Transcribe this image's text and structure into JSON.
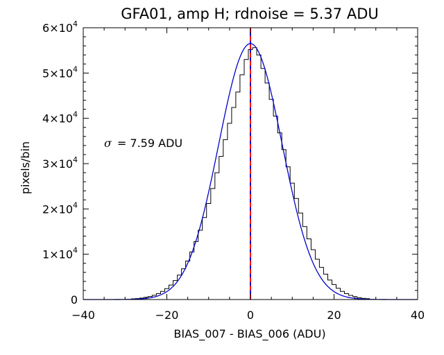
{
  "chart_data": {
    "type": "histogram",
    "title": "GFA01, amp H; rdnoise = 5.37 ADU",
    "xlabel": "BIAS_007 - BIAS_006 (ADU)",
    "ylabel": "pixels/bin",
    "xlim": [
      -40,
      40
    ],
    "ylim": [
      0,
      60000
    ],
    "x_ticks": [
      -40,
      -20,
      0,
      20,
      40
    ],
    "y_ticks": [
      {
        "value": 0,
        "mantissa": "0",
        "exponent": ""
      },
      {
        "value": 10000,
        "mantissa": "1×10",
        "exponent": "4"
      },
      {
        "value": 20000,
        "mantissa": "2×10",
        "exponent": "4"
      },
      {
        "value": 30000,
        "mantissa": "3×10",
        "exponent": "4"
      },
      {
        "value": 40000,
        "mantissa": "4×10",
        "exponent": "4"
      },
      {
        "value": 50000,
        "mantissa": "5×10",
        "exponent": "4"
      },
      {
        "value": 60000,
        "mantissa": "6×10",
        "exponent": "4"
      }
    ],
    "grid": false,
    "annotation": {
      "symbol": "σ",
      "text": "= 7.59 ADU"
    },
    "histogram": {
      "bin_width": 1,
      "bins": [
        {
          "x": -28,
          "y": 150
        },
        {
          "x": -27,
          "y": 220
        },
        {
          "x": -26,
          "y": 320
        },
        {
          "x": -25,
          "y": 480
        },
        {
          "x": -24,
          "y": 680
        },
        {
          "x": -23,
          "y": 940
        },
        {
          "x": -22,
          "y": 1300
        },
        {
          "x": -21,
          "y": 1800
        },
        {
          "x": -20,
          "y": 2400
        },
        {
          "x": -19,
          "y": 3200
        },
        {
          "x": -18,
          "y": 4200
        },
        {
          "x": -17,
          "y": 5400
        },
        {
          "x": -16,
          "y": 6800
        },
        {
          "x": -15,
          "y": 8500
        },
        {
          "x": -14,
          "y": 10500
        },
        {
          "x": -13,
          "y": 12800
        },
        {
          "x": -12,
          "y": 15300
        },
        {
          "x": -11,
          "y": 18100
        },
        {
          "x": -10,
          "y": 21200
        },
        {
          "x": -9,
          "y": 24500
        },
        {
          "x": -8,
          "y": 28000
        },
        {
          "x": -7,
          "y": 31600
        },
        {
          "x": -6,
          "y": 35300
        },
        {
          "x": -5,
          "y": 38900
        },
        {
          "x": -4,
          "y": 42400
        },
        {
          "x": -3,
          "y": 45800
        },
        {
          "x": -2,
          "y": 49600
        },
        {
          "x": -1,
          "y": 53000
        },
        {
          "x": 0,
          "y": 55200
        },
        {
          "x": 1,
          "y": 55600
        },
        {
          "x": 2,
          "y": 54000
        },
        {
          "x": 3,
          "y": 51000
        },
        {
          "x": 4,
          "y": 47800
        },
        {
          "x": 5,
          "y": 44200
        },
        {
          "x": 6,
          "y": 40500
        },
        {
          "x": 7,
          "y": 36800
        },
        {
          "x": 8,
          "y": 33100
        },
        {
          "x": 9,
          "y": 29300
        },
        {
          "x": 10,
          "y": 25700
        },
        {
          "x": 11,
          "y": 22300
        },
        {
          "x": 12,
          "y": 19100
        },
        {
          "x": 13,
          "y": 16100
        },
        {
          "x": 14,
          "y": 13400
        },
        {
          "x": 15,
          "y": 11000
        },
        {
          "x": 16,
          "y": 8900
        },
        {
          "x": 17,
          "y": 7100
        },
        {
          "x": 18,
          "y": 5600
        },
        {
          "x": 19,
          "y": 4300
        },
        {
          "x": 20,
          "y": 3300
        },
        {
          "x": 21,
          "y": 2500
        },
        {
          "x": 22,
          "y": 1800
        },
        {
          "x": 23,
          "y": 1300
        },
        {
          "x": 24,
          "y": 920
        },
        {
          "x": 25,
          "y": 640
        },
        {
          "x": 26,
          "y": 430
        },
        {
          "x": 27,
          "y": 280
        },
        {
          "x": 28,
          "y": 180
        }
      ]
    },
    "gaussian_fit": {
      "color": "#0000cc",
      "amplitude": 56500,
      "mean": 0,
      "sigma": 7.59
    },
    "reference_line": {
      "x": 0,
      "colors": [
        "#ff0000",
        "#0000cc"
      ],
      "style": "dashed"
    }
  }
}
